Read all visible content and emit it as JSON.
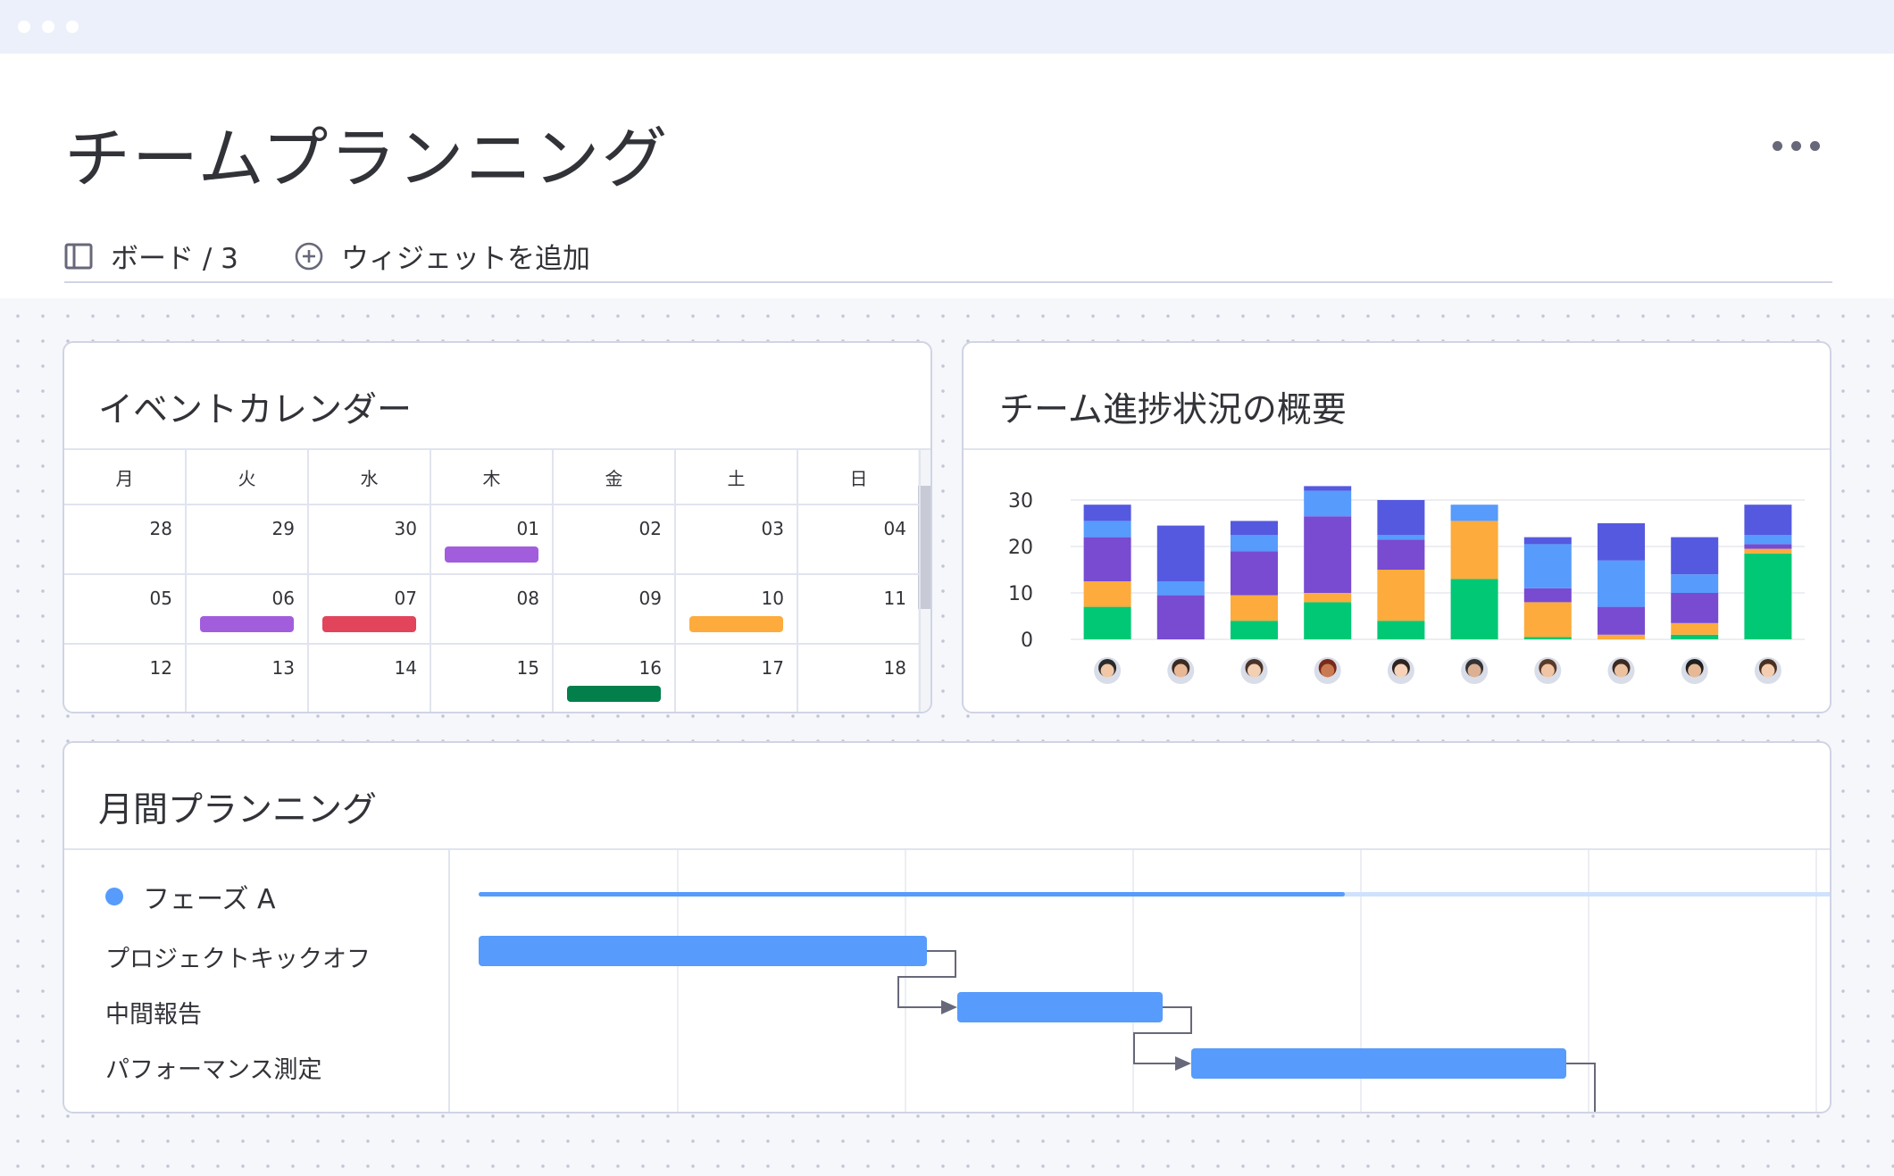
{
  "header": {
    "title": "チームプランニング",
    "toolbar": {
      "board_label": "ボード / 3",
      "add_widget_label": "ウィジェットを追加"
    }
  },
  "calendar": {
    "title": "イベントカレンダー",
    "weekdays": [
      "月",
      "火",
      "水",
      "木",
      "金",
      "土",
      "日"
    ],
    "weeks": [
      [
        "28",
        "29",
        "30",
        "01",
        "02",
        "03",
        "04"
      ],
      [
        "05",
        "06",
        "07",
        "08",
        "09",
        "10",
        "11"
      ],
      [
        "12",
        "13",
        "14",
        "15",
        "16",
        "17",
        "18"
      ]
    ],
    "events": [
      {
        "week": 0,
        "day": 3,
        "color": "#a25ddc"
      },
      {
        "week": 1,
        "day": 1,
        "color": "#a25ddc"
      },
      {
        "week": 1,
        "day": 2,
        "color": "#e2445c"
      },
      {
        "week": 1,
        "day": 5,
        "color": "#fdab3d"
      },
      {
        "week": 2,
        "day": 4,
        "color": "#037f4c"
      }
    ]
  },
  "progress": {
    "title": "チーム進捗状況の概要",
    "colors": [
      "#00c875",
      "#fdab3d",
      "#784bd1",
      "#579bfc",
      "#5559df"
    ],
    "chart_data": {
      "type": "bar",
      "stacked": true,
      "ylim": [
        0,
        30
      ],
      "yticks": [
        "0",
        "10",
        "20",
        "30"
      ],
      "grid": true,
      "categories": [
        "member-1",
        "member-2",
        "member-3",
        "member-4",
        "member-5",
        "member-6",
        "member-7",
        "member-8",
        "member-9",
        "member-10"
      ],
      "series": [
        {
          "values": [
            7,
            0,
            4,
            8,
            4,
            13,
            0.5,
            0,
            1,
            18.5
          ]
        },
        {
          "values": [
            5.5,
            0,
            5.5,
            2,
            11,
            12.5,
            7.5,
            1,
            2.5,
            1
          ]
        },
        {
          "values": [
            9.5,
            9.5,
            9.5,
            16.5,
            6.5,
            0,
            3,
            6,
            6.5,
            1
          ]
        },
        {
          "values": [
            3.5,
            3,
            3.5,
            5.5,
            1,
            3.5,
            9.5,
            10,
            4,
            2
          ]
        },
        {
          "values": [
            3.5,
            12,
            3,
            1,
            7.5,
            0,
            1.5,
            8,
            8,
            6.5
          ]
        }
      ]
    }
  },
  "monthly": {
    "title": "月間プランニング",
    "phase_label": "フェーズ A",
    "phase_progress": 0.64,
    "tasks": [
      "プロジェクトキックオフ",
      "中間報告",
      "パフォーマンス測定"
    ]
  }
}
